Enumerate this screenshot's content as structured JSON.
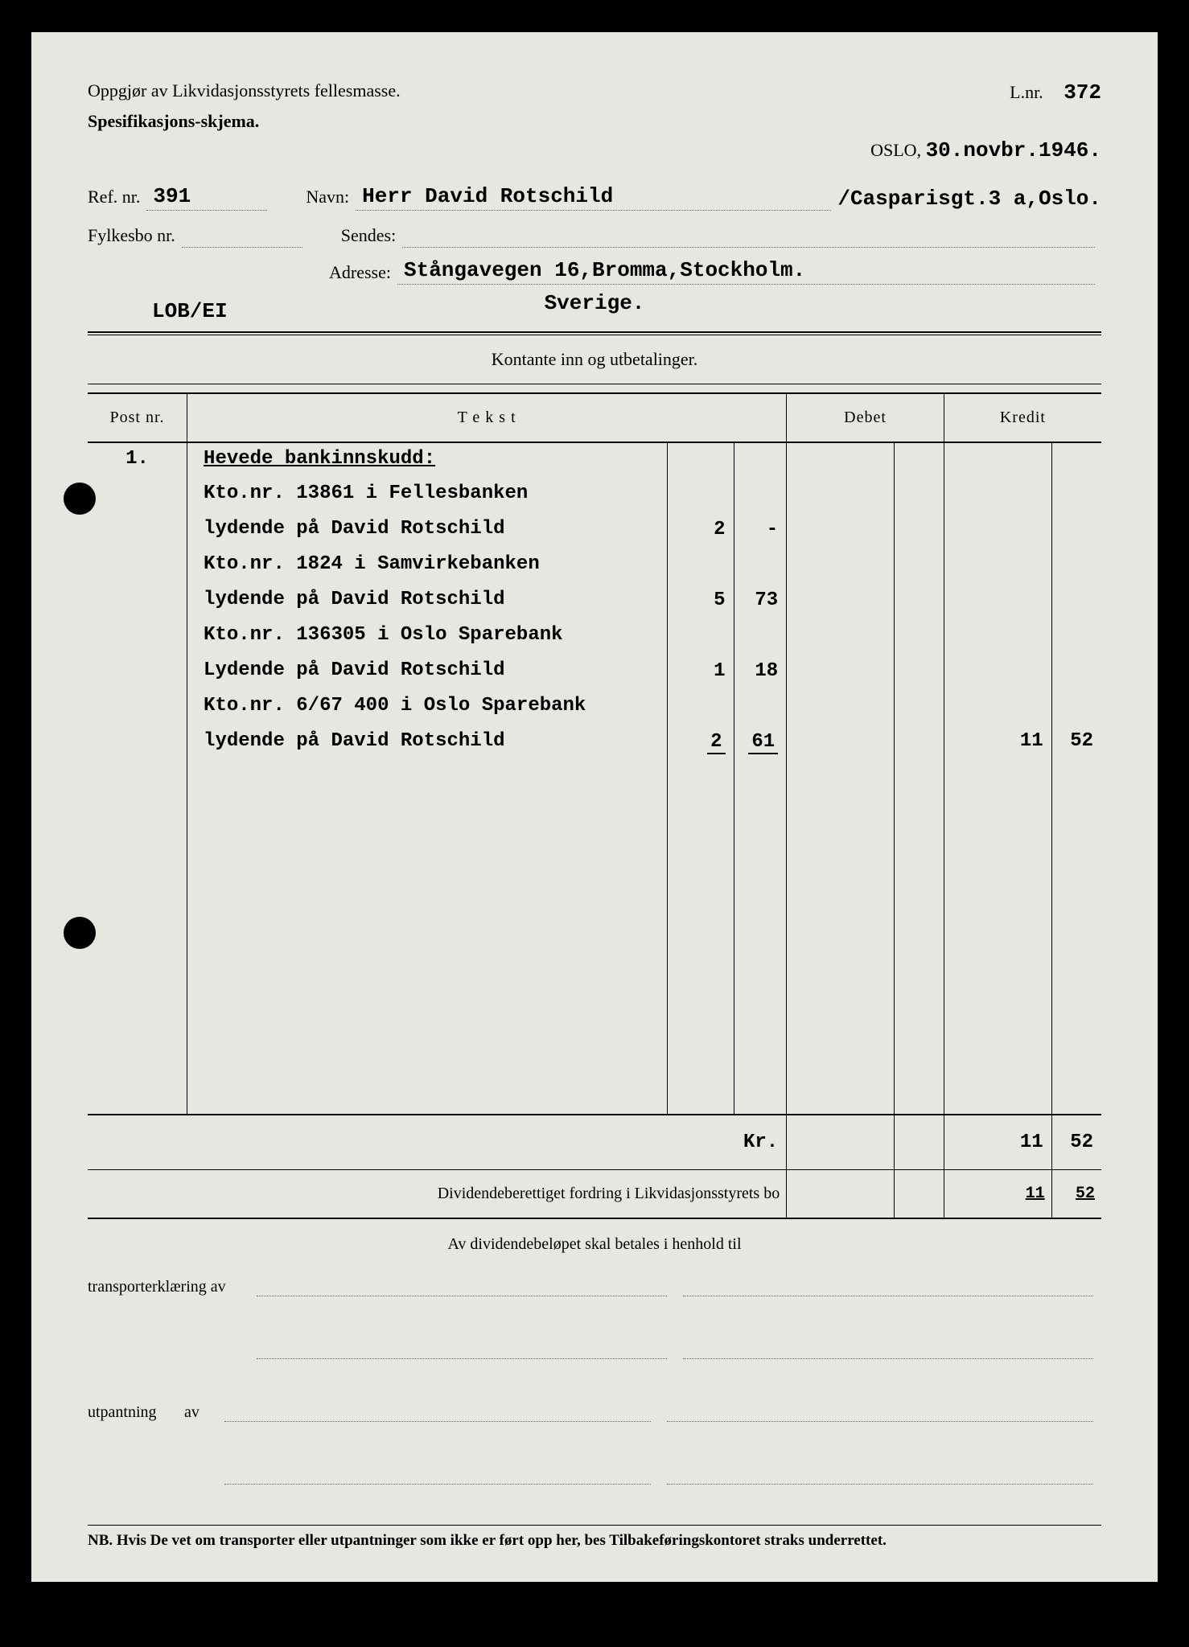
{
  "header": {
    "title": "Oppgjør av Likvidasjonsstyrets fellesmasse.",
    "subtitle": "Spesifikasjons-skjema.",
    "lnr_label": "L.nr.",
    "lnr_value": "372",
    "city": "OSLO,",
    "date": "30.novbr.1946."
  },
  "fields": {
    "ref_label": "Ref. nr.",
    "ref_value": "391",
    "navn_label": "Navn:",
    "navn_value": "Herr David Rotschild",
    "navn_right": "/Casparisgt.3 a,Oslo.",
    "fylkesbo_label": "Fylkesbo nr.",
    "sendes_label": "Sendes:",
    "adresse_label": "Adresse:",
    "adresse_value1": "Stångavegen 16,Bromma,Stockholm.",
    "adresse_value2": "Sverige.",
    "lob": "LOB/EI"
  },
  "section_title": "Kontante inn og utbetalinger.",
  "columns": {
    "post": "Post nr.",
    "tekst": "T e k s t",
    "debet": "Debet",
    "kredit": "Kredit"
  },
  "rows": [
    {
      "post": "1.",
      "text": "Hevede bankinnskudd:",
      "underlined": true,
      "a1": "",
      "a2": "",
      "k1": "",
      "k2": ""
    },
    {
      "post": "",
      "text": "Kto.nr. 13861 i Fellesbanken",
      "a1": "",
      "a2": "",
      "k1": "",
      "k2": ""
    },
    {
      "post": "",
      "text": "lydende på David Rotschild",
      "a1": "2",
      "a2": "-",
      "k1": "",
      "k2": ""
    },
    {
      "post": "",
      "text": "Kto.nr. 1824 i Samvirkebanken",
      "a1": "",
      "a2": "",
      "k1": "",
      "k2": ""
    },
    {
      "post": "",
      "text": "lydende på David Rotschild",
      "a1": "5",
      "a2": "73",
      "k1": "",
      "k2": ""
    },
    {
      "post": "",
      "text": "Kto.nr. 136305 i Oslo Sparebank",
      "a1": "",
      "a2": "",
      "k1": "",
      "k2": ""
    },
    {
      "post": "",
      "text": "Lydende på David Rotschild",
      "a1": "1",
      "a2": "18",
      "k1": "",
      "k2": ""
    },
    {
      "post": "",
      "text": "Kto.nr. 6/67 400 i Oslo Sparebank",
      "a1": "",
      "a2": "",
      "k1": "",
      "k2": ""
    },
    {
      "post": "",
      "text": "lydende på David Rotschild",
      "a1": "2",
      "a2": "61",
      "sum_underline": true,
      "k1": "11",
      "k2": "52"
    }
  ],
  "totals": {
    "kr_label": "Kr.",
    "kr1": "11",
    "kr2": "52",
    "div_label": "Dividendeberettiget fordring i Likvidasjonsstyrets bo",
    "div1": "11",
    "div2": "52"
  },
  "bottom": {
    "line1": "Av dividendebeløpet skal betales i henhold til",
    "transport_label": "transporterklæring av",
    "utpantning_label": "utpantning",
    "av_label": "av",
    "nb": "NB. Hvis De vet om transporter eller utpantninger som ikke er ført opp her, bes Tilbakeføringskontoret straks underrettet."
  },
  "colors": {
    "page_bg": "#e8e6e0",
    "outer_bg": "#000000",
    "text": "#1a1a1a"
  }
}
